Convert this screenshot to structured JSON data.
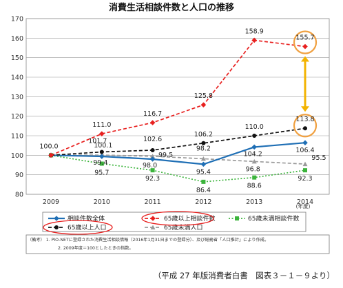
{
  "chart_data": {
    "type": "line",
    "title": "消費生活相談件数と人口の推移",
    "x": [
      "2009",
      "2010",
      "2011",
      "2012",
      "2013",
      "2014"
    ],
    "x_unit": "(年度)",
    "ylim": [
      80,
      170
    ],
    "yticks": [
      80,
      90,
      100,
      110,
      120,
      130,
      140,
      150,
      160,
      170
    ],
    "grid": true,
    "legend_position": "bottom",
    "series": [
      {
        "name": "相談件数全体",
        "color": "#1f6fb5",
        "dash": "solid",
        "marker": "diamond",
        "values": [
          100.0,
          99.4,
          98.0,
          95.4,
          104.2,
          106.4
        ],
        "labels": [
          "",
          "99.4",
          "98.0",
          "95.4",
          "104.2",
          "106.4"
        ]
      },
      {
        "name": "65歳以上相談件数",
        "color": "#e8201f",
        "dash": "dashed",
        "marker": "diamond",
        "values": [
          100.0,
          111.0,
          116.7,
          125.8,
          158.9,
          155.7
        ],
        "labels": [
          "",
          "111.0",
          "116.7",
          "125.8",
          "158.9",
          "155.7"
        ]
      },
      {
        "name": "65歳未満相談件数",
        "color": "#3cb43c",
        "dash": "dotted",
        "marker": "square",
        "values": [
          100.0,
          95.7,
          92.3,
          86.4,
          88.6,
          92.3
        ],
        "labels": [
          "",
          "95.7",
          "92.3",
          "86.4",
          "88.6",
          "92.3"
        ]
      },
      {
        "name": "65歳以上人口",
        "color": "#111111",
        "dash": "dashed",
        "marker": "circle",
        "values": [
          100.0,
          101.7,
          102.6,
          106.2,
          110.0,
          113.8
        ],
        "labels": [
          "100.0",
          "101.7",
          "102.6",
          "106.2",
          "110.0",
          "113.8"
        ]
      },
      {
        "name": "65歳未満人口",
        "color": "#9a9a9a",
        "dash": "dashed",
        "marker": "triangle",
        "values": [
          100.0,
          100.1,
          99.5,
          98.2,
          96.8,
          95.5
        ],
        "labels": [
          "",
          "100.1",
          "99.5",
          "98.2",
          "96.8",
          "95.5"
        ]
      }
    ],
    "notes": [
      "（備考） 1. PIO-NETに登録された消費生活相談情報（2016年1月31日までの登録分）、及び総務省「人口推計」により作成。",
      "2. 2009年度＝100としたときの指数。"
    ],
    "source": "（平成 27 年版消費者白書　図表３－１－９より）"
  }
}
